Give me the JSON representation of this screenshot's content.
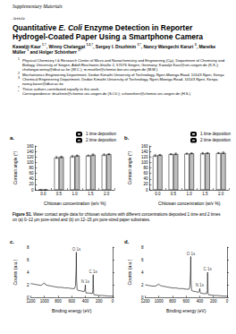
{
  "header": "Supplementary Materials",
  "article_type": "Article",
  "title": [
    {
      "text": "Quantitative "
    },
    {
      "text": "E. Coli",
      "italic": true
    },
    {
      "text": " Enzyme Detection in Reporter Hydrogel-Coated Paper Using a Smartphone Camera"
    }
  ],
  "authors": [
    {
      "text": "Kawaljit Kaur ",
      "sup": "1,†"
    },
    {
      "text": ", Winny Chelangat ",
      "sup": "1,2,†"
    },
    {
      "text": ", Sergey I. Druzhinin ",
      "sup": "1,*"
    },
    {
      "text": ", Nancy Wangechi Karuri ",
      "sup": "3"
    },
    {
      "text": ", Mareike Müller ",
      "sup": "1"
    },
    {
      "text": " and Holger Schönherr ",
      "sup": "1,*"
    }
  ],
  "affiliations": [
    {
      "mark": "1",
      "text": "Physical Chemistry I & Research Center of Micro and Nanochemistry and Engineering (Cμ), Department of Chemistry and Biology, University of Siegen, Adolf-Reichwein-Straße 2, 57076 Siegen, Germany; Kawaljit.Kaur@uni-siegen.de (K.K.); chelangat.winny@dkut.ac.ke (W.C.); m.mueller@chemie-bio.uni-siegen.de (M.M.)"
    },
    {
      "mark": "2",
      "text": "Mechatronics Engineering Department, Dedan Kimathi University of Technology, Nyeri-Mweiga Road, 10143 Nyeri, Kenya"
    },
    {
      "mark": "3",
      "text": "Chemical Engineering Department, Dedan Kimathi University of Technology, Nyeri-Mweiga Road, 10143 Nyeri, Kenya; nancy.karuri@dkut.ac.ke"
    },
    {
      "mark": "†",
      "text": "These authors contributed equally to this work."
    },
    {
      "mark": "*",
      "text": "Correspondence: druzhinin@chemie.uni-siegen.de (S.I.D.); schoenherr@chemie.uni-siegen.de (H.S.)"
    }
  ],
  "caption": {
    "label": "Figure S1.",
    "text": " Water contact angle data for chitosan solutions with different concentrations deposited 1 time and 2 times on (a) 0–12 µm pore-sized and (b) on 12–15 µm pore-sized paper substrates."
  },
  "chart_data": [
    {
      "type": "bar",
      "title": "a.",
      "x_label": "Chitosan concentration (w/v %)",
      "y_label": "Contact angle (°)",
      "categories": [
        "0.0",
        "0.5",
        "1.0",
        "1.5",
        "2.0"
      ],
      "series": [
        {
          "name": "1 time deposition",
          "color": "#ffffff",
          "values": [
            0,
            118,
            122,
            125,
            128
          ],
          "errors": [
            0,
            3,
            3,
            2,
            3
          ]
        },
        {
          "name": "2 time deposition",
          "color": "#bfbfbf",
          "values": [
            0,
            120,
            125,
            128,
            130
          ],
          "errors": [
            0,
            3,
            2,
            3,
            2
          ]
        }
      ],
      "ylim": [
        0,
        160
      ],
      "yticks": [
        0,
        20,
        40,
        60,
        80,
        100,
        120,
        140,
        160
      ],
      "legend": "top-right"
    },
    {
      "type": "bar",
      "title": "b.",
      "x_label": "Chitosan concentration (w/v %)",
      "y_label": "Contact angle (°)",
      "categories": [
        "0.0",
        "0.5",
        "1.0",
        "1.5",
        "2.0"
      ],
      "series": [
        {
          "name": "1 time deposition",
          "color": "#ffffff",
          "values": [
            125,
            130,
            132,
            133,
            134
          ],
          "errors": [
            3,
            2,
            2,
            3,
            2
          ]
        },
        {
          "name": "2 time deposition",
          "color": "#bfbfbf",
          "values": [
            127,
            131,
            133,
            134,
            135
          ],
          "errors": [
            2,
            3,
            2,
            2,
            3
          ]
        }
      ],
      "ylim": [
        0,
        160
      ],
      "yticks": [
        0,
        20,
        40,
        60,
        80,
        100,
        120,
        140,
        160
      ],
      "legend": "top-right"
    },
    {
      "type": "line",
      "title": "c.",
      "x_label": "Binding energy (eV)",
      "y_label": "Counts (a.u.)",
      "x": [
        1200,
        1150,
        1100,
        1050,
        1000,
        980,
        950,
        900,
        850,
        800,
        750,
        700,
        650,
        600,
        560,
        545,
        535,
        532,
        529,
        520,
        500,
        450,
        420,
        405,
        400,
        396,
        390,
        350,
        300,
        290,
        285,
        282,
        278,
        270,
        250,
        200,
        150,
        100,
        50,
        0
      ],
      "values": [
        2.2,
        2.1,
        2.0,
        1.9,
        2.3,
        2.0,
        1.9,
        1.8,
        1.7,
        1.6,
        1.6,
        1.5,
        1.5,
        1.4,
        1.4,
        1.8,
        4.5,
        7.2,
        3.0,
        1.2,
        1.1,
        1.0,
        0.9,
        1.3,
        2.0,
        1.0,
        0.7,
        0.7,
        0.6,
        1.0,
        3.6,
        2.0,
        0.6,
        0.4,
        0.4,
        0.3,
        0.3,
        0.25,
        0.2,
        0.2
      ],
      "color": "#000000",
      "xlim": [
        1200,
        0
      ],
      "xticks": [
        0,
        200,
        400,
        600,
        800,
        1000,
        1200
      ],
      "ylim": [
        0,
        8
      ],
      "yticks": [
        0,
        2,
        4,
        6,
        8
      ],
      "annotations": [
        {
          "text": "O 1s",
          "x": 532,
          "y": 7.2
        },
        {
          "text": "N 1s",
          "x": 400,
          "y": 2.0
        },
        {
          "text": "C 1s",
          "x": 285,
          "y": 3.6
        }
      ]
    },
    {
      "type": "line",
      "title": "d.",
      "x_label": "Binding energy (eV)",
      "y_label": "Counts (a.u.)",
      "x": [
        1200,
        1150,
        1100,
        1050,
        1000,
        980,
        950,
        900,
        850,
        800,
        750,
        700,
        650,
        600,
        560,
        545,
        535,
        532,
        529,
        520,
        500,
        450,
        420,
        405,
        400,
        396,
        390,
        350,
        300,
        290,
        285,
        282,
        278,
        270,
        250,
        200,
        150,
        100,
        50,
        0
      ],
      "values": [
        2.0,
        1.9,
        1.8,
        1.8,
        2.1,
        1.9,
        1.8,
        1.7,
        1.6,
        1.5,
        1.5,
        1.4,
        1.4,
        1.3,
        1.3,
        1.7,
        4.2,
        6.5,
        2.8,
        1.1,
        1.0,
        0.9,
        0.8,
        1.0,
        1.4,
        0.9,
        0.7,
        0.6,
        0.6,
        1.1,
        4.0,
        2.2,
        0.6,
        0.4,
        0.4,
        0.3,
        0.3,
        0.25,
        0.2,
        0.2
      ],
      "color": "#000000",
      "xlim": [
        1200,
        0
      ],
      "xticks": [
        0,
        200,
        400,
        600,
        800,
        1000,
        1200
      ],
      "ylim": [
        0,
        8
      ],
      "yticks": [
        0,
        2,
        4,
        6,
        8
      ],
      "annotations": [
        {
          "text": "O 1s",
          "x": 532,
          "y": 6.5
        },
        {
          "text": "C 1s",
          "x": 285,
          "y": 4.0
        },
        {
          "text": "N 1s",
          "x": 400,
          "y": 1.4
        }
      ]
    }
  ]
}
